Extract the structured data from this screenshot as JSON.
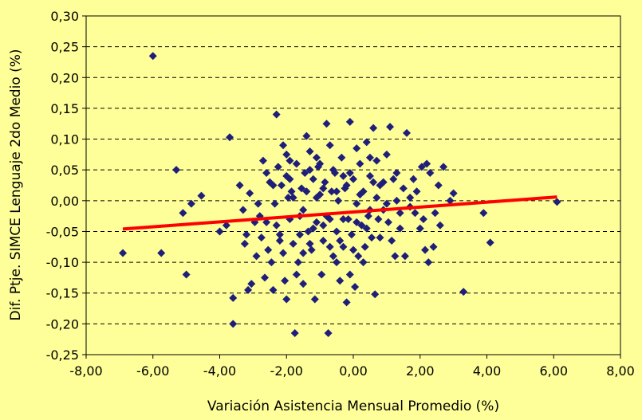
{
  "chart_data": {
    "type": "scatter",
    "xlabel": "Variación Asistencia Mensual Promedio (%)",
    "ylabel": "Dif. Ptje. SIMCE Lenguaje 2do Medio (%)",
    "xlim": [
      -8,
      8
    ],
    "ylim": [
      -0.25,
      0.3
    ],
    "xticks": [
      -8,
      -6,
      -4,
      -2,
      0,
      2,
      4,
      6,
      8
    ],
    "yticks": [
      -0.25,
      -0.2,
      -0.15,
      -0.1,
      -0.05,
      0,
      0.05,
      0.1,
      0.15,
      0.2,
      0.25,
      0.3
    ],
    "xtick_labels": [
      "-8,00",
      "-6,00",
      "-4,00",
      "-2,00",
      "0,00",
      "2,00",
      "4,00",
      "6,00",
      "8,00"
    ],
    "ytick_labels": [
      "-0,25",
      "-0,20",
      "-0,15",
      "-0,10",
      "-0,05",
      "0,00",
      "0,05",
      "0,10",
      "0,15",
      "0,20",
      "0,25",
      "0,30"
    ],
    "grid": "horizontal dashed",
    "legend": "none",
    "colors": {
      "background": "#FFFF99",
      "points": "#1F1F7A",
      "trend": "#FF0000",
      "grid": "#000000"
    },
    "points": [
      [
        -6.0,
        0.235
      ],
      [
        -6.9,
        -0.085
      ],
      [
        -5.75,
        -0.085
      ],
      [
        -5.3,
        0.05
      ],
      [
        -5.1,
        -0.02
      ],
      [
        -5.0,
        -0.12
      ],
      [
        -4.85,
        -0.005
      ],
      [
        -4.55,
        0.008
      ],
      [
        -3.7,
        0.103
      ],
      [
        -3.6,
        -0.158
      ],
      [
        -3.6,
        -0.2
      ],
      [
        -3.4,
        0.025
      ],
      [
        -3.8,
        -0.04
      ],
      [
        -4.0,
        -0.05
      ],
      [
        -3.3,
        -0.015
      ],
      [
        -3.25,
        -0.07
      ],
      [
        -3.15,
        -0.145
      ],
      [
        -3.05,
        -0.135
      ],
      [
        -3.1,
        0.012
      ],
      [
        -2.95,
        -0.035
      ],
      [
        -2.9,
        -0.09
      ],
      [
        -2.85,
        -0.005
      ],
      [
        -2.75,
        -0.06
      ],
      [
        -2.7,
        0.065
      ],
      [
        -2.65,
        -0.125
      ],
      [
        -2.6,
        0.045
      ],
      [
        -2.55,
        -0.08
      ],
      [
        -2.5,
        0.03
      ],
      [
        -2.45,
        -0.1
      ],
      [
        -2.4,
        -0.145
      ],
      [
        -2.35,
        -0.005
      ],
      [
        -2.3,
        0.14
      ],
      [
        -2.25,
        0.055
      ],
      [
        -2.2,
        -0.055
      ],
      [
        -2.15,
        0.025
      ],
      [
        -2.1,
        0.09
      ],
      [
        -2.05,
        -0.13
      ],
      [
        -2.0,
        -0.16
      ],
      [
        -2.0,
        0.04
      ],
      [
        -1.95,
        0.005
      ],
      [
        -1.9,
        -0.03
      ],
      [
        -1.85,
        0.015
      ],
      [
        -1.8,
        -0.07
      ],
      [
        -1.75,
        -0.215
      ],
      [
        -1.7,
        0.06
      ],
      [
        -1.65,
        -0.1
      ],
      [
        -1.6,
        -0.025
      ],
      [
        -1.55,
        0.02
      ],
      [
        -1.5,
        -0.135
      ],
      [
        -1.45,
        0.045
      ],
      [
        -1.4,
        0.105
      ],
      [
        -1.35,
        -0.05
      ],
      [
        -1.3,
        0.08
      ],
      [
        -1.25,
        -0.08
      ],
      [
        -1.2,
        0.035
      ],
      [
        -1.15,
        -0.16
      ],
      [
        -1.1,
        -0.035
      ],
      [
        -1.05,
        0.055
      ],
      [
        -1.0,
        0.01
      ],
      [
        -0.95,
        -0.12
      ],
      [
        -0.9,
        -0.065
      ],
      [
        -0.85,
        0.03
      ],
      [
        -0.8,
        0.125
      ],
      [
        -0.75,
        -0.215
      ],
      [
        -0.7,
        -0.03
      ],
      [
        -0.65,
        0.015
      ],
      [
        -0.6,
        -0.09
      ],
      [
        -0.55,
        0.045
      ],
      [
        -0.5,
        -0.05
      ],
      [
        -0.45,
        0.0
      ],
      [
        -0.4,
        -0.13
      ],
      [
        -0.35,
        0.07
      ],
      [
        -0.3,
        -0.075
      ],
      [
        -0.25,
        0.02
      ],
      [
        -0.2,
        -0.165
      ],
      [
        -0.15,
        -0.03
      ],
      [
        -0.1,
        0.128
      ],
      [
        -0.05,
        -0.055
      ],
      [
        0.0,
        0.035
      ],
      [
        0.05,
        -0.14
      ],
      [
        0.1,
        -0.005
      ],
      [
        0.15,
        -0.09
      ],
      [
        0.2,
        0.06
      ],
      [
        0.25,
        -0.04
      ],
      [
        0.3,
        0.015
      ],
      [
        0.35,
        -0.075
      ],
      [
        0.4,
        0.095
      ],
      [
        0.45,
        -0.025
      ],
      [
        0.5,
        0.04
      ],
      [
        0.55,
        -0.06
      ],
      [
        0.6,
        0.118
      ],
      [
        0.65,
        -0.152
      ],
      [
        0.7,
        0.005
      ],
      [
        0.75,
        -0.03
      ],
      [
        0.8,
        0.025
      ],
      [
        0.9,
        -0.015
      ],
      [
        1.0,
        0.075
      ],
      [
        1.05,
        -0.035
      ],
      [
        1.1,
        0.12
      ],
      [
        1.15,
        -0.065
      ],
      [
        1.2,
        0.035
      ],
      [
        1.25,
        -0.09
      ],
      [
        1.3,
        0.0
      ],
      [
        1.4,
        -0.045
      ],
      [
        1.5,
        0.02
      ],
      [
        1.55,
        -0.09
      ],
      [
        1.6,
        0.11
      ],
      [
        1.7,
        -0.01
      ],
      [
        1.8,
        0.035
      ],
      [
        1.85,
        -0.02
      ],
      [
        1.9,
        0.015
      ],
      [
        2.0,
        -0.045
      ],
      [
        2.05,
        0.055
      ],
      [
        2.15,
        -0.08
      ],
      [
        2.2,
        0.06
      ],
      [
        2.25,
        -0.1
      ],
      [
        2.3,
        0.045
      ],
      [
        2.4,
        -0.075
      ],
      [
        2.45,
        -0.02
      ],
      [
        2.55,
        0.025
      ],
      [
        2.7,
        0.055
      ],
      [
        2.9,
        0.0
      ],
      [
        3.0,
        0.012
      ],
      [
        3.3,
        -0.148
      ],
      [
        3.9,
        -0.02
      ],
      [
        4.1,
        -0.068
      ],
      [
        6.1,
        -0.002
      ],
      [
        -2.8,
        -0.025
      ],
      [
        -2.4,
        0.025
      ],
      [
        -2.1,
        -0.085
      ],
      [
        -1.9,
        0.065
      ],
      [
        -1.6,
        -0.055
      ],
      [
        -1.4,
        0.015
      ],
      [
        -1.2,
        -0.045
      ],
      [
        -1.0,
        0.06
      ],
      [
        -0.8,
        -0.025
      ],
      [
        -0.6,
        0.05
      ],
      [
        -0.4,
        -0.065
      ],
      [
        -0.2,
        0.025
      ],
      [
        0.0,
        -0.08
      ],
      [
        0.2,
        0.01
      ],
      [
        0.4,
        -0.045
      ],
      [
        0.6,
        0.03
      ],
      [
        0.8,
        -0.06
      ],
      [
        1.0,
        -0.005
      ],
      [
        -3.2,
        -0.055
      ],
      [
        -2.6,
        -0.035
      ],
      [
        -2.2,
        -0.065
      ],
      [
        -1.8,
        0.005
      ],
      [
        -1.3,
        -0.07
      ],
      [
        -0.9,
        0.02
      ],
      [
        -0.5,
        -0.1
      ],
      [
        -0.1,
        0.045
      ],
      [
        0.3,
        -0.1
      ],
      [
        0.7,
        0.065
      ],
      [
        1.3,
        0.045
      ],
      [
        1.7,
        0.005
      ],
      [
        -1.5,
        -0.015
      ],
      [
        -1.1,
        0.005
      ],
      [
        -0.7,
        0.09
      ],
      [
        -0.3,
        -0.03
      ],
      [
        0.1,
        0.085
      ],
      [
        0.5,
        -0.015
      ],
      [
        -2.0,
        0.075
      ],
      [
        -1.7,
        -0.12
      ],
      [
        -1.3,
        0.05
      ],
      [
        -0.9,
        -0.04
      ],
      [
        -0.5,
        0.015
      ],
      [
        -0.1,
        -0.12
      ],
      [
        -2.3,
        -0.04
      ],
      [
        -1.9,
        0.035
      ],
      [
        -1.5,
        -0.085
      ],
      [
        -1.1,
        0.07
      ],
      [
        -0.7,
        -0.075
      ],
      [
        -0.3,
        0.04
      ],
      [
        0.1,
        -0.035
      ],
      [
        0.5,
        0.07
      ],
      [
        0.9,
        0.03
      ],
      [
        1.4,
        -0.02
      ],
      [
        2.1,
        -0.03
      ],
      [
        2.6,
        -0.04
      ]
    ],
    "trendline": {
      "x": [
        -6.9,
        6.1
      ],
      "y": [
        -0.046,
        0.006
      ]
    }
  }
}
